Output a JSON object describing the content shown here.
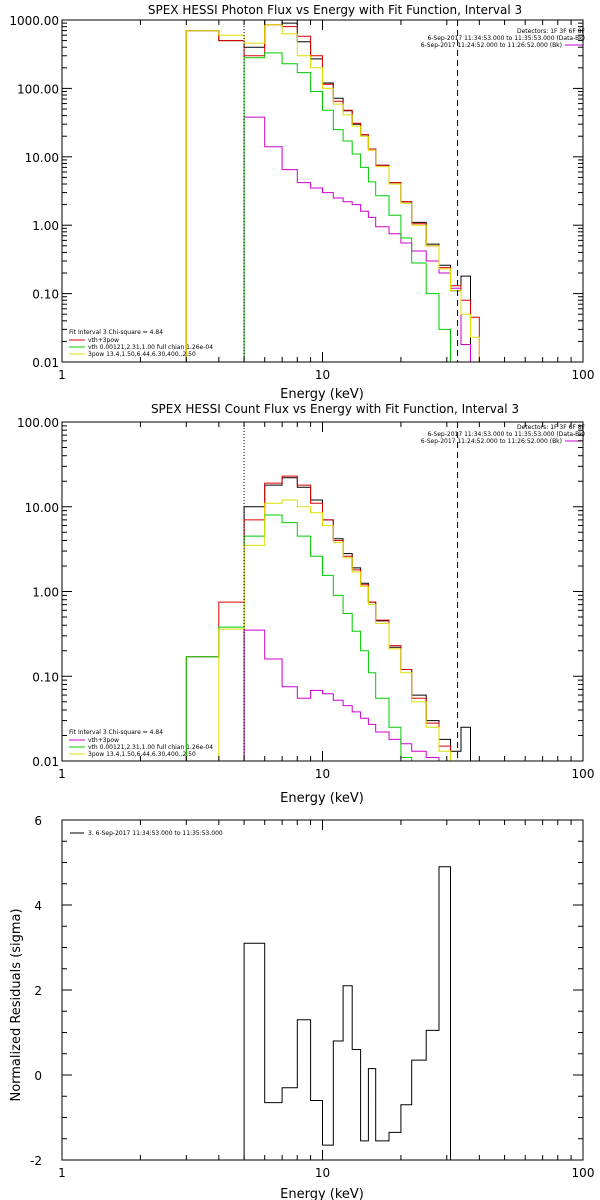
{
  "chart_data": [
    {
      "type": "line",
      "title": "SPEX HESSI Photon Flux vs Energy with Fit Function, Interval 3",
      "xlabel": "Energy (keV)",
      "ylabel": "",
      "x_scale": "log",
      "y_scale": "log",
      "xlim": [
        1,
        100
      ],
      "ylim": [
        0.01,
        1000
      ],
      "xticks": [
        "1",
        "10",
        "100"
      ],
      "yticks": [
        "1000.00",
        "100.00",
        "10.00",
        "1.00",
        "0.10",
        "0.01"
      ],
      "legend_top": [
        "Detectors: 1F 3F 6F 8F",
        "6-Sep-2017 11:34:53.000 to 11:35:53.000 (Data-Bk)",
        "6-Sep-2017 11:24:52.000 to 11:26:52.000 (Bk)"
      ],
      "legend_bottom": [
        "Fit Interval 3   Chi-square = 4.84",
        "vth+3pow",
        "vth 0.00121,2.31,1.00   full chian 1.26e-04",
        "3pow 13.4,1.50,6.44,6.30,400.,2.50"
      ],
      "vlines_keV": {
        "dotted": 5.0,
        "dashed": 33.0
      },
      "edges_keV": [
        3,
        4,
        5,
        6,
        7,
        8,
        9,
        10,
        11,
        12,
        13,
        14,
        15,
        16,
        18,
        20,
        22,
        25,
        28,
        31,
        34,
        37,
        40
      ],
      "series": [
        {
          "name": "Data-Bk",
          "color": "#000000",
          "values": [
            700,
            500,
            400,
            1050,
            900,
            480,
            270,
            120,
            72,
            47,
            30,
            21,
            13,
            7.5,
            4.2,
            2.2,
            1.1,
            0.53,
            0.26,
            0.11,
            0.18
          ]
        },
        {
          "name": "Bk",
          "color": "#cc00cc",
          "values": [
            null,
            null,
            38,
            14,
            6.5,
            4.2,
            3.5,
            3.0,
            2.5,
            2.2,
            2.0,
            1.6,
            1.3,
            0.95,
            0.75,
            0.55,
            0.42,
            0.3,
            0.2,
            0.12,
            0.018
          ]
        },
        {
          "name": "vth+3pow",
          "color": "#dd0000",
          "values": [
            700,
            500,
            300,
            850,
            800,
            580,
            300,
            115,
            65,
            48,
            31,
            21,
            13,
            7.5,
            4.2,
            2.2,
            1.05,
            0.5,
            0.24,
            0.13,
            0.08,
            0.045
          ]
        },
        {
          "name": "vth",
          "color": "#00cc00",
          "values": [
            null,
            null,
            280,
            330,
            230,
            170,
            90,
            48,
            25,
            17,
            11,
            7,
            4.3,
            2.7,
            1.4,
            0.65,
            0.28,
            0.1,
            0.03,
            null,
            null
          ]
        },
        {
          "name": "3pow",
          "color": "#dddd00",
          "values": [
            700,
            600,
            460,
            850,
            630,
            300,
            200,
            100,
            59,
            41,
            28,
            20,
            12.5,
            7.2,
            4.0,
            2.1,
            1.0,
            0.5,
            0.23,
            0.11,
            0.05,
            0.023,
            0.012
          ]
        }
      ]
    },
    {
      "type": "line",
      "title": "SPEX HESSI Count Flux vs Energy with Fit Function, Interval 3",
      "xlabel": "Energy (keV)",
      "ylabel": "",
      "x_scale": "log",
      "y_scale": "log",
      "xlim": [
        1,
        100
      ],
      "ylim": [
        0.01,
        100
      ],
      "xticks": [
        "1",
        "10",
        "100"
      ],
      "yticks": [
        "100.00",
        "10.00",
        "1.00",
        "0.10",
        "0.01"
      ],
      "legend_top": [
        "Detectors: 1F 3F 6F 8F",
        "6-Sep-2017 11:34:53.000 to 11:35:53.000 (Data-Bk)",
        "6-Sep-2017 11:24:52.000 to 11:26:52.000 (Bk)"
      ],
      "legend_bottom": [
        "Fit Interval 3   Chi-square = 4.84",
        "vth+3pow",
        "vth 0.00121,2.31,1.00   full chian 1.26e-04",
        "3pow 13.4,1.50,6.44,6.30,400.,2.50"
      ],
      "vlines_keV": {
        "dotted": 5.0,
        "dashed": 33.0
      },
      "edges_keV": [
        3,
        4,
        5,
        6,
        7,
        8,
        9,
        10,
        11,
        12,
        13,
        14,
        15,
        16,
        18,
        20,
        22,
        25,
        28,
        31,
        34,
        37,
        40
      ],
      "series": [
        {
          "name": "Data-Bk",
          "color": "#000000",
          "values": [
            null,
            null,
            10,
            18,
            22,
            17,
            12,
            7,
            4.2,
            2.8,
            1.9,
            1.25,
            0.75,
            0.45,
            0.22,
            0.12,
            0.06,
            0.03,
            0.018,
            0.013,
            0.025
          ]
        },
        {
          "name": "Bk",
          "color": "#cc00cc",
          "values": [
            null,
            null,
            0.35,
            0.16,
            0.075,
            0.055,
            0.068,
            0.062,
            0.052,
            0.045,
            0.038,
            0.032,
            0.027,
            0.022,
            0.018,
            0.016,
            0.013,
            0.011,
            0.009,
            null,
            null
          ]
        },
        {
          "name": "vth+3pow",
          "color": "#dd0000",
          "values": [
            0.17,
            0.75,
            7,
            19,
            23,
            18,
            11,
            7,
            4.0,
            2.6,
            1.8,
            1.2,
            0.75,
            0.46,
            0.23,
            0.12,
            0.055,
            0.028,
            0.015,
            0.008,
            null
          ]
        },
        {
          "name": "vth",
          "color": "#00cc00",
          "values": [
            0.17,
            0.38,
            4.5,
            8,
            6.5,
            4.5,
            2.6,
            1.55,
            0.9,
            0.55,
            0.34,
            0.2,
            0.11,
            0.055,
            0.025,
            0.011,
            null,
            null,
            null,
            null,
            null
          ]
        },
        {
          "name": "3pow",
          "color": "#dddd00",
          "values": [
            null,
            0.36,
            3.5,
            11,
            12,
            10,
            8.5,
            6,
            3.8,
            2.5,
            1.7,
            1.15,
            0.7,
            0.42,
            0.21,
            0.11,
            0.05,
            0.025,
            0.013,
            0.008,
            null
          ]
        }
      ]
    },
    {
      "type": "line",
      "title": "",
      "xlabel": "Energy (keV)",
      "ylabel": "Normalized Residuals (sigma)",
      "x_scale": "log",
      "xlim": [
        1,
        100
      ],
      "ylim": [
        -2,
        6
      ],
      "xticks": [
        "1",
        "10",
        "100"
      ],
      "yticks": [
        "6",
        "4",
        "2",
        "0",
        "-2"
      ],
      "legend_top": [
        "3.  6-Sep-2017 11:34:53.000 to 11:35:53.000"
      ],
      "edges_keV": [
        5,
        6,
        7,
        8,
        9,
        10,
        11,
        12,
        13,
        14,
        15,
        16,
        18,
        20,
        22,
        25,
        28,
        31,
        34
      ],
      "series": [
        {
          "name": "",
          "color": "#000000",
          "values": [
            3.1,
            -0.65,
            -0.3,
            1.3,
            -0.6,
            -1.65,
            0.8,
            2.1,
            0.6,
            -1.55,
            0.15,
            -1.55,
            -1.35,
            -0.7,
            0.35,
            1.05,
            4.9,
            -2.1
          ]
        }
      ]
    }
  ]
}
